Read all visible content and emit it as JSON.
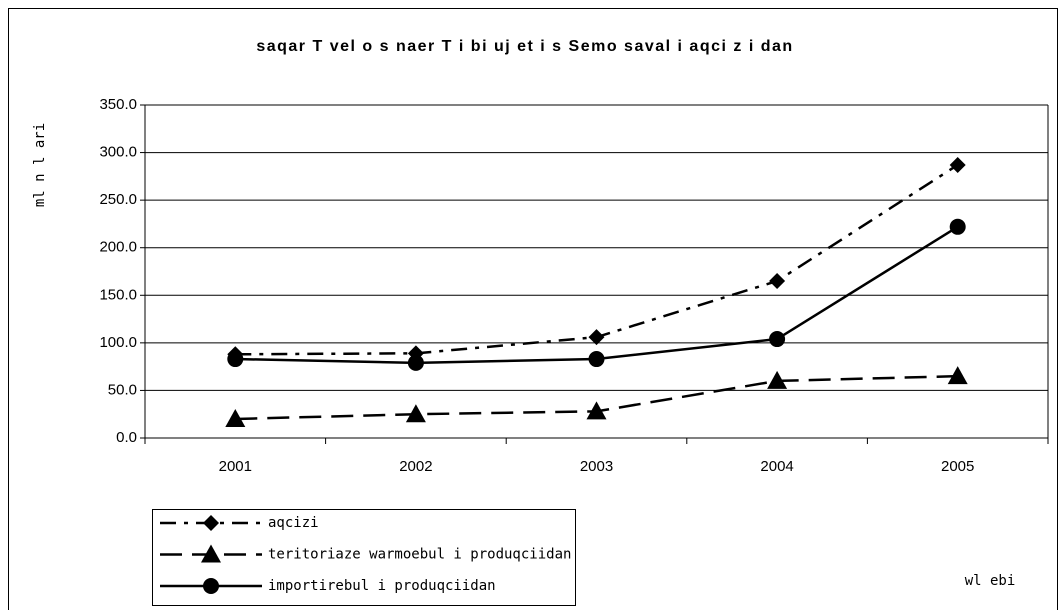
{
  "chart_data": {
    "type": "line",
    "title": "saqar T vel o s naer T i  bi uj et i s  Semo saval  i  aqci z i dan",
    "y_label": "ml n l ari",
    "x_label": "wl ebi",
    "categories": [
      "2001",
      "2002",
      "2003",
      "2004",
      "2005"
    ],
    "series": [
      {
        "name": "aqcizi",
        "color": "#000000",
        "dash": "dash-dot",
        "marker": "diamond",
        "values": [
          88,
          89,
          106,
          165,
          287
        ]
      },
      {
        "name": "teritoriaze warmoebul i produqciidan",
        "color": "#000000",
        "dash": "dash",
        "marker": "triangle",
        "values": [
          20,
          25,
          28,
          60,
          65
        ]
      },
      {
        "name": "importirebul i produqciidan",
        "color": "#000000",
        "dash": "solid",
        "marker": "circle",
        "values": [
          83,
          79,
          83,
          104,
          222
        ]
      }
    ],
    "ylim": [
      0,
      350
    ],
    "yticks": [
      {
        "value": 0,
        "label": "0.0"
      },
      {
        "value": 50,
        "label": "50.0"
      },
      {
        "value": 100,
        "label": "100.0"
      },
      {
        "value": 150,
        "label": "150.0"
      },
      {
        "value": 200,
        "label": "200.0"
      },
      {
        "value": 250,
        "label": "250.0"
      },
      {
        "value": 300,
        "label": "300.0"
      },
      {
        "value": 350,
        "label": "350.0"
      }
    ],
    "grid": true,
    "legend": "bottom-left"
  }
}
